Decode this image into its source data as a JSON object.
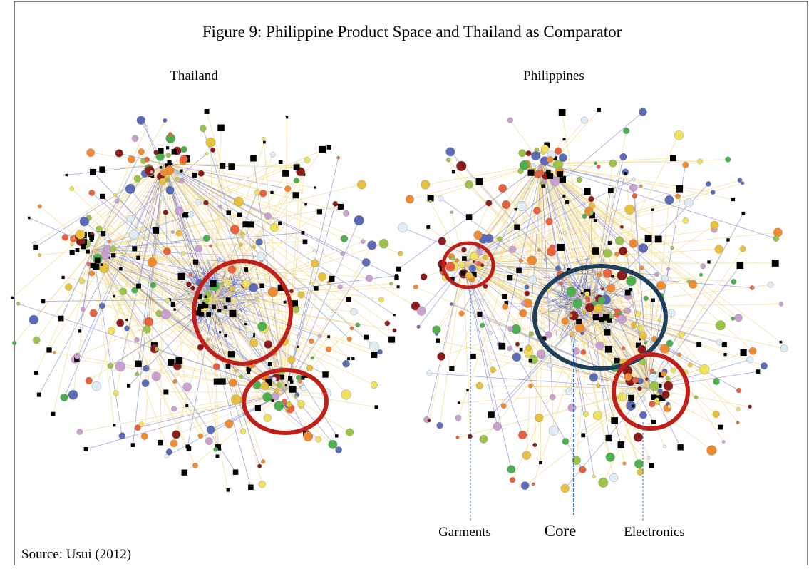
{
  "figure": {
    "title": "Figure 9: Philippine Product Space and Thailand as Comparator",
    "panels": [
      {
        "label": "Thailand"
      },
      {
        "label": "Philippines",
        "annotations": [
          "Garments",
          "Core",
          "Electronics"
        ]
      }
    ],
    "source": "Source: Usui (2012)"
  }
}
